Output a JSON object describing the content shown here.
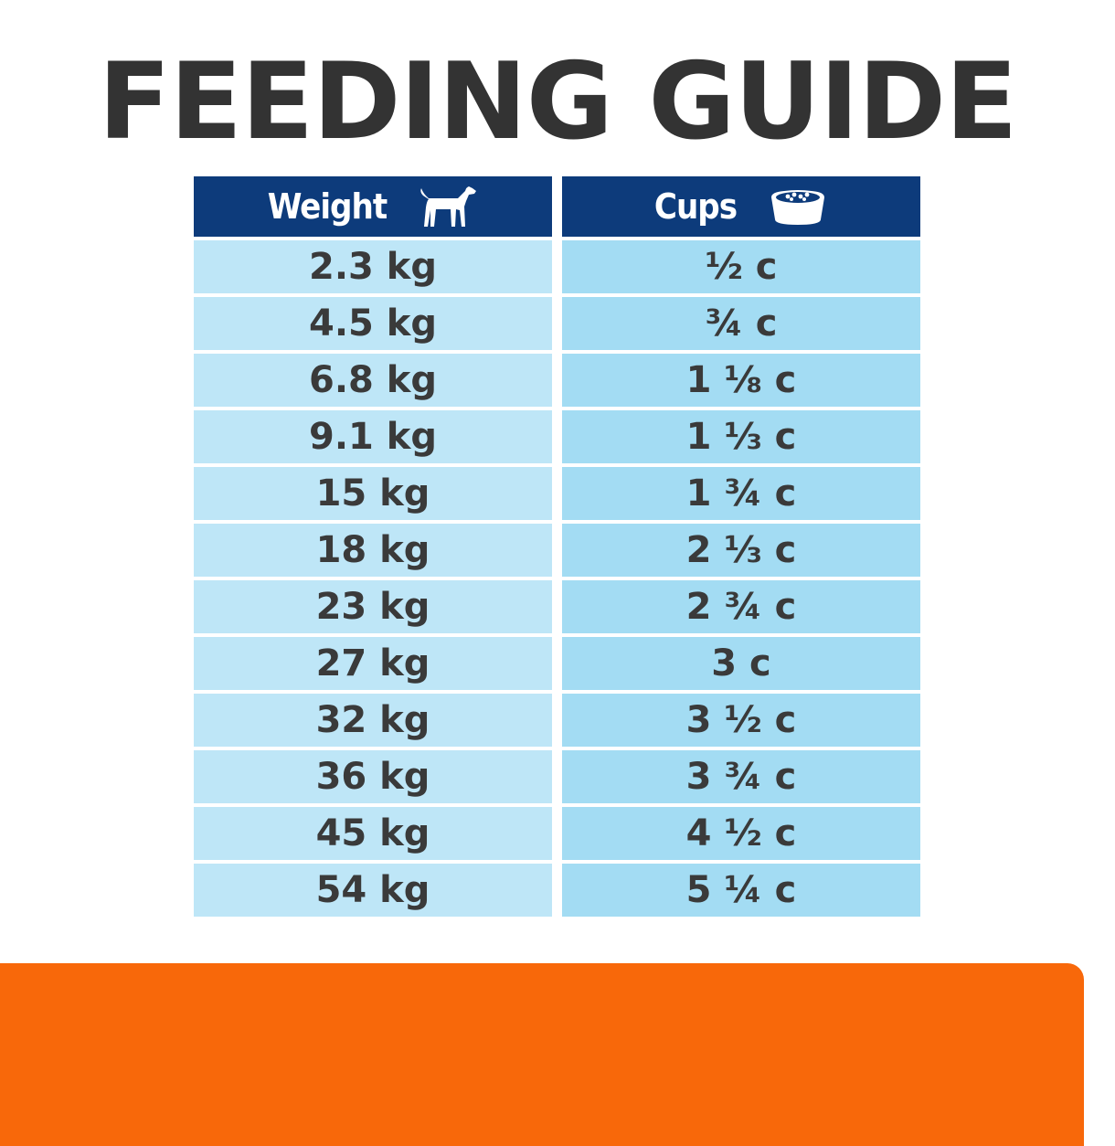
{
  "title": "FEEDING GUIDE",
  "table": {
    "headers": {
      "weight": {
        "label": "Weight",
        "icon": "dog-icon"
      },
      "cups": {
        "label": "Cups",
        "icon": "food-bowl-icon"
      }
    },
    "rows": [
      {
        "weight": "2.3 kg",
        "cups": "½ c"
      },
      {
        "weight": "4.5 kg",
        "cups": "¾ c"
      },
      {
        "weight": "6.8 kg",
        "cups": "1 ⅛ c"
      },
      {
        "weight": "9.1 kg",
        "cups": "1 ⅓ c"
      },
      {
        "weight": "15 kg",
        "cups": "1 ¾ c"
      },
      {
        "weight": "18 kg",
        "cups": "2 ⅓ c"
      },
      {
        "weight": "23 kg",
        "cups": "2 ¾ c"
      },
      {
        "weight": "27 kg",
        "cups": "3 c"
      },
      {
        "weight": "32 kg",
        "cups": "3 ½ c"
      },
      {
        "weight": "36 kg",
        "cups": "3 ¾ c"
      },
      {
        "weight": "45 kg",
        "cups": "4 ½ c"
      },
      {
        "weight": "54 kg",
        "cups": "5 ¼ c"
      }
    ]
  },
  "colors": {
    "header_bg": "#0d3b7b",
    "weight_cell_bg": "#bee6f7",
    "cups_cell_bg": "#a3dcf3",
    "title_text": "#333333",
    "accent_orange": "#f8680a"
  }
}
